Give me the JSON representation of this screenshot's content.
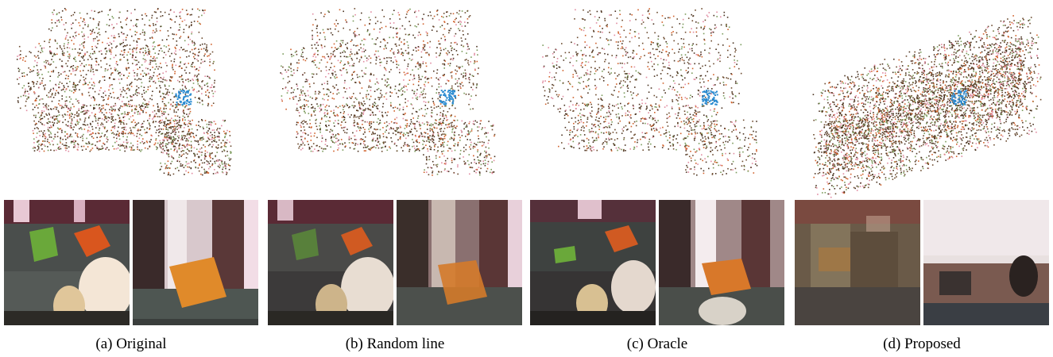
{
  "figure": {
    "panels": [
      {
        "id": "a",
        "caption": "(a) Original"
      },
      {
        "id": "b",
        "caption": "(b) Random line"
      },
      {
        "id": "c",
        "caption": "(c) Oracle"
      },
      {
        "id": "d",
        "caption": "(d) Proposed"
      }
    ]
  },
  "colors": {
    "brown": "#6b4a2e",
    "dark_brown": "#4a3220",
    "pink": "#e08aa0",
    "green": "#7a9a5a",
    "orange": "#d0602a",
    "blue": "#2a8ad0",
    "sofa": "#555a55",
    "background": "#ffffff"
  }
}
